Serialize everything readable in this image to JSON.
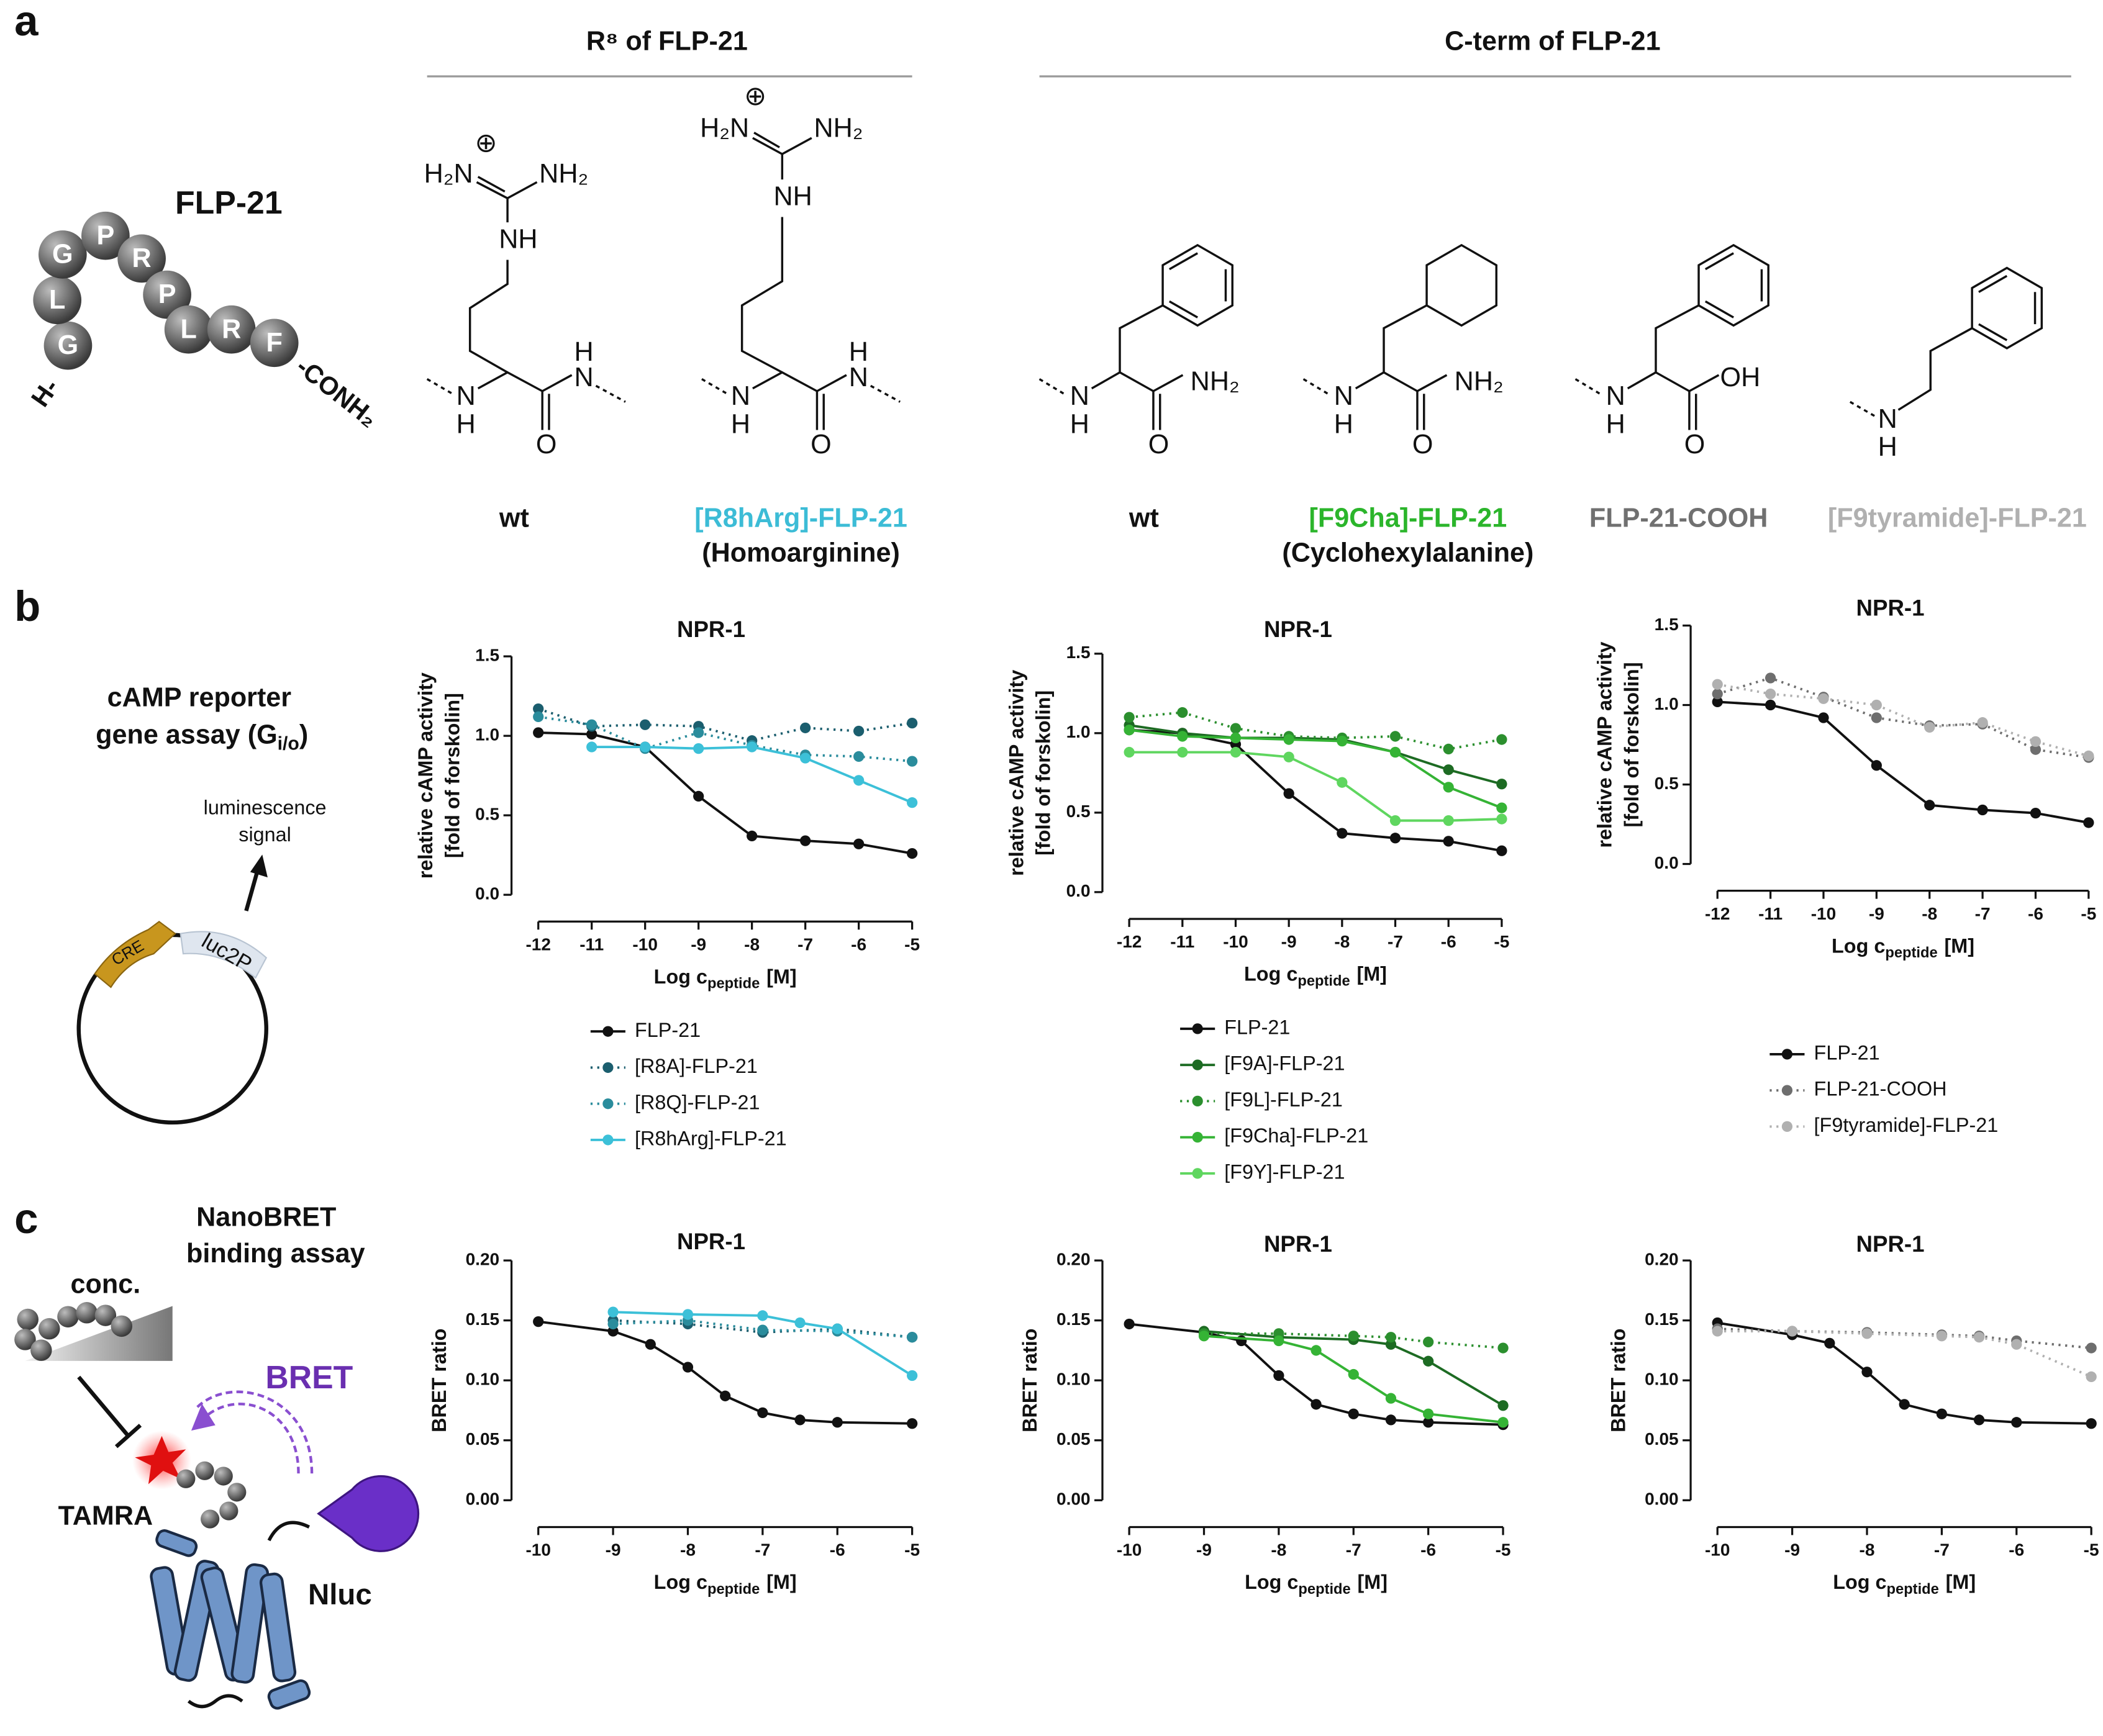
{
  "panel_labels": [
    "a",
    "b",
    "c"
  ],
  "panel_a": {
    "headers": [
      "R⁸ of FLP-21",
      "C-term of FLP-21"
    ],
    "peptide": {
      "name": "FLP-21",
      "residues": [
        "G",
        "L",
        "G",
        "P",
        "R",
        "P",
        "L",
        "R",
        "F"
      ],
      "n_term": "H-",
      "c_term": "-CONH₂"
    },
    "structures": [
      {
        "atoms": [
          "⊕",
          "H₂N",
          "NH₂",
          "NH",
          "N",
          "H",
          "O",
          "N",
          "H"
        ],
        "label": "wt",
        "color": "#111111"
      },
      {
        "atoms": [
          "⊕",
          "H₂N",
          "NH₂",
          "NH",
          "N",
          "H",
          "O",
          "N",
          "H"
        ],
        "label": "[R8hArg]-FLP-21",
        "note": "(Homoarginine)",
        "color": "#3cbcd6"
      },
      {
        "atoms": [
          "N",
          "H",
          "O",
          "NH₂"
        ],
        "label": "wt",
        "color": "#111111"
      },
      {
        "atoms": [
          "N",
          "H",
          "O",
          "NH₂"
        ],
        "label": "[F9Cha]-FLP-21",
        "note": "(Cyclohexylalanine)",
        "color": "#2bb52b"
      },
      {
        "atoms": [
          "N",
          "H",
          "O",
          "OH"
        ],
        "label": "FLP-21-COOH",
        "color": "#707070"
      },
      {
        "atoms": [
          "N",
          "H"
        ],
        "label": "[F9tyramide]-FLP-21",
        "color": "#b0b0b0"
      }
    ]
  },
  "panel_b": {
    "assay": [
      "cAMP reporter",
      {
        "text": "gene assay (G",
        "sub": "i/o",
        "tail": ")"
      }
    ],
    "signal": [
      "luminescence",
      "signal"
    ],
    "elements": [
      "CRE",
      "luc2P"
    ]
  },
  "panel_c": {
    "assay": [
      "NanoBRET",
      "binding assay"
    ],
    "labels": [
      "conc.",
      "BRET",
      "TAMRA",
      "Nluc"
    ]
  },
  "chart_data": [
    {
      "type": "line",
      "title": "NPR-1",
      "xlabel": {
        "text": "Log c",
        "sub": "peptide",
        "tail": "[M]"
      },
      "ylabel": [
        "relative cAMP activity",
        "[fold of forskolin]"
      ],
      "x": [
        -12,
        -11,
        -10,
        -9,
        -8,
        -7,
        -6,
        -5
      ],
      "xlim": [
        -12,
        -5
      ],
      "xticks": [
        -12,
        -11,
        -10,
        -9,
        -8,
        -7,
        -6,
        -5
      ],
      "ylim": [
        0,
        1.5
      ],
      "yticks": [
        {
          "value": 0,
          "label": "0.0"
        },
        0.5,
        {
          "value": 1,
          "label": "1.0"
        },
        1.5
      ],
      "series": [
        {
          "name": "FLP-21",
          "color": "#111111",
          "line_style": "solid",
          "values": [
            1.02,
            1.01,
            0.93,
            0.62,
            0.37,
            0.34,
            0.32,
            0.26
          ]
        },
        {
          "name": "[R8A]-FLP-21",
          "color": "#1b5e6e",
          "line_style": "dotted",
          "values": [
            1.17,
            1.06,
            1.07,
            1.06,
            0.97,
            1.05,
            1.03,
            1.08
          ]
        },
        {
          "name": "[R8Q]-FLP-21",
          "color": "#2a8c9c",
          "line_style": "dotted",
          "values": [
            1.12,
            1.07,
            0.92,
            1.02,
            0.94,
            0.88,
            0.87,
            0.84
          ]
        },
        {
          "name": "[R8hArg]-FLP-21",
          "color": "#3cc0d8",
          "line_style": "solid",
          "values": [
            null,
            0.93,
            0.93,
            0.92,
            0.93,
            0.86,
            0.72,
            0.58
          ]
        }
      ]
    },
    {
      "type": "line",
      "title": "NPR-1",
      "xlabel": {
        "text": "Log c",
        "sub": "peptide",
        "tail": "[M]"
      },
      "ylabel": [
        "relative cAMP activity",
        "[fold of forskolin]"
      ],
      "x": [
        -12,
        -11,
        -10,
        -9,
        -8,
        -7,
        -6,
        -5
      ],
      "xlim": [
        -12,
        -5
      ],
      "xticks": [
        -12,
        -11,
        -10,
        -9,
        -8,
        -7,
        -6,
        -5
      ],
      "ylim": [
        0,
        1.5
      ],
      "yticks": [
        {
          "value": 0,
          "label": "0.0"
        },
        0.5,
        {
          "value": 1,
          "label": "1.0"
        },
        1.5
      ],
      "series": [
        {
          "name": "FLP-21",
          "color": "#111111",
          "line_style": "solid",
          "values": [
            1.02,
            1.0,
            0.93,
            0.62,
            0.37,
            0.34,
            0.32,
            0.26
          ]
        },
        {
          "name": "[F9A]-FLP-21",
          "color": "#1d6b23",
          "line_style": "solid",
          "values": [
            1.05,
            1.0,
            0.97,
            0.97,
            0.96,
            0.88,
            0.77,
            0.68
          ]
        },
        {
          "name": "[F9L]-FLP-21",
          "color": "#2b8f2e",
          "line_style": "dotted",
          "values": [
            1.1,
            1.13,
            1.03,
            0.98,
            0.97,
            0.98,
            0.9,
            0.96
          ]
        },
        {
          "name": "[F9Cha]-FLP-21",
          "color": "#35b335",
          "line_style": "solid",
          "values": [
            1.02,
            0.98,
            0.97,
            0.96,
            0.95,
            0.88,
            0.66,
            0.53
          ]
        },
        {
          "name": "[F9Y]-FLP-21",
          "color": "#5fd65f",
          "line_style": "solid",
          "values": [
            0.88,
            0.88,
            0.88,
            0.85,
            0.69,
            0.45,
            0.45,
            0.46
          ]
        }
      ]
    },
    {
      "type": "line",
      "title": "NPR-1",
      "xlabel": {
        "text": "Log c",
        "sub": "peptide",
        "tail": "[M]"
      },
      "ylabel": [
        "relative cAMP activity",
        "[fold of forskolin]"
      ],
      "x": [
        -12,
        -11,
        -10,
        -9,
        -8,
        -7,
        -6,
        -5
      ],
      "xlim": [
        -12,
        -5
      ],
      "xticks": [
        -12,
        -11,
        -10,
        -9,
        -8,
        -7,
        -6,
        -5
      ],
      "ylim": [
        0,
        1.5
      ],
      "yticks": [
        {
          "value": 0,
          "label": "0.0"
        },
        0.5,
        {
          "value": 1,
          "label": "1.0"
        },
        1.5
      ],
      "series": [
        {
          "name": "FLP-21",
          "color": "#111111",
          "line_style": "solid",
          "values": [
            1.02,
            1.0,
            0.92,
            0.62,
            0.37,
            0.34,
            0.32,
            0.26
          ]
        },
        {
          "name": "FLP-21-COOH",
          "color": "#6e6e6e",
          "line_style": "dotted",
          "values": [
            1.07,
            1.17,
            1.05,
            0.92,
            0.87,
            0.88,
            0.72,
            0.67
          ]
        },
        {
          "name": "[F9tyramide]-FLP-21",
          "color": "#b0b0b0",
          "line_style": "dotted",
          "values": [
            1.13,
            1.07,
            1.04,
            1.0,
            0.86,
            0.89,
            0.77,
            0.68
          ]
        }
      ]
    },
    {
      "type": "line",
      "title": "NPR-1",
      "xlabel": {
        "text": "Log c",
        "sub": "peptide",
        "tail": "[M]"
      },
      "ylabel": [
        "BRET ratio"
      ],
      "xlim": [
        -10,
        -5
      ],
      "xticks": [
        -10,
        -9,
        -8,
        -7,
        -6,
        -5
      ],
      "ylim": [
        0,
        0.2
      ],
      "yticks": [
        {
          "value": 0,
          "label": "0.00"
        },
        {
          "value": 0.05,
          "label": "0.05"
        },
        {
          "value": 0.1,
          "label": "0.10"
        },
        {
          "value": 0.15,
          "label": "0.15"
        },
        {
          "value": 0.2,
          "label": "0.20"
        }
      ],
      "series": [
        {
          "color": "#111111",
          "line_style": "solid",
          "x": [
            -10,
            -9,
            -8.5,
            -8,
            -7.5,
            -7,
            -6.5,
            -6,
            -5
          ],
          "values": [
            0.149,
            0.141,
            0.13,
            0.111,
            0.087,
            0.073,
            0.067,
            0.065,
            0.064
          ]
        },
        {
          "color": "#1b5e6e",
          "line_style": "dotted",
          "x": [
            -9,
            -8,
            -7,
            -6,
            -5
          ],
          "values": [
            0.15,
            0.147,
            0.14,
            0.143,
            0.136
          ]
        },
        {
          "color": "#2a8c9c",
          "line_style": "dotted",
          "x": [
            -9,
            -8,
            -7,
            -6,
            -5
          ],
          "values": [
            0.147,
            0.15,
            0.142,
            0.141,
            0.136
          ]
        },
        {
          "color": "#3cc0d8",
          "line_style": "solid",
          "x": [
            -9,
            -8,
            -7,
            -6.5,
            -6,
            -5
          ],
          "values": [
            0.157,
            0.155,
            0.154,
            0.148,
            0.143,
            0.104
          ]
        }
      ]
    },
    {
      "type": "line",
      "title": "NPR-1",
      "xlabel": {
        "text": "Log c",
        "sub": "peptide",
        "tail": "[M]"
      },
      "ylabel": [
        "BRET ratio"
      ],
      "xlim": [
        -10,
        -5
      ],
      "xticks": [
        -10,
        -9,
        -8,
        -7,
        -6,
        -5
      ],
      "ylim": [
        0,
        0.2
      ],
      "yticks": [
        {
          "value": 0,
          "label": "0.00"
        },
        {
          "value": 0.05,
          "label": "0.05"
        },
        {
          "value": 0.1,
          "label": "0.10"
        },
        {
          "value": 0.15,
          "label": "0.15"
        },
        {
          "value": 0.2,
          "label": "0.20"
        }
      ],
      "series": [
        {
          "color": "#111111",
          "line_style": "solid",
          "x": [
            -10,
            -9,
            -8.5,
            -8,
            -7.5,
            -7,
            -6.5,
            -6,
            -5
          ],
          "values": [
            0.147,
            0.14,
            0.133,
            0.104,
            0.08,
            0.072,
            0.067,
            0.065,
            0.063
          ]
        },
        {
          "color": "#1d6b23",
          "line_style": "solid",
          "x": [
            -9,
            -8,
            -7,
            -6.5,
            -6,
            -5
          ],
          "values": [
            0.141,
            0.136,
            0.134,
            0.13,
            0.116,
            0.079
          ]
        },
        {
          "color": "#2b8f2e",
          "line_style": "dotted",
          "x": [
            -9,
            -8,
            -7,
            -6.5,
            -6,
            -5
          ],
          "values": [
            0.139,
            0.139,
            0.137,
            0.136,
            0.132,
            0.127
          ]
        },
        {
          "color": "#35b335",
          "line_style": "solid",
          "x": [
            -9,
            -8,
            -7.5,
            -7,
            -6.5,
            -6,
            -5
          ],
          "values": [
            0.137,
            0.133,
            0.125,
            0.105,
            0.085,
            0.072,
            0.065
          ]
        }
      ]
    },
    {
      "type": "line",
      "title": "NPR-1",
      "xlabel": {
        "text": "Log c",
        "sub": "peptide",
        "tail": "[M]"
      },
      "ylabel": [
        "BRET ratio"
      ],
      "xlim": [
        -10,
        -5
      ],
      "xticks": [
        -10,
        -9,
        -8,
        -7,
        -6,
        -5
      ],
      "ylim": [
        0,
        0.2
      ],
      "yticks": [
        {
          "value": 0,
          "label": "0.00"
        },
        {
          "value": 0.05,
          "label": "0.05"
        },
        {
          "value": 0.1,
          "label": "0.10"
        },
        {
          "value": 0.15,
          "label": "0.15"
        },
        {
          "value": 0.2,
          "label": "0.20"
        }
      ],
      "series": [
        {
          "color": "#111111",
          "line_style": "solid",
          "x": [
            -10,
            -9,
            -8.5,
            -8,
            -7.5,
            -7,
            -6.5,
            -6,
            -5
          ],
          "values": [
            0.148,
            0.138,
            0.131,
            0.107,
            0.08,
            0.072,
            0.067,
            0.065,
            0.064
          ]
        },
        {
          "color": "#6e6e6e",
          "line_style": "dotted",
          "x": [
            -10,
            -9,
            -8,
            -7,
            -6.5,
            -6,
            -5
          ],
          "values": [
            0.143,
            0.141,
            0.14,
            0.138,
            0.137,
            0.133,
            0.127
          ]
        },
        {
          "color": "#b0b0b0",
          "line_style": "dotted",
          "x": [
            -10,
            -9,
            -8,
            -7,
            -6.5,
            -6,
            -5
          ],
          "values": [
            0.141,
            0.141,
            0.139,
            0.137,
            0.136,
            0.13,
            0.103
          ]
        }
      ]
    }
  ]
}
